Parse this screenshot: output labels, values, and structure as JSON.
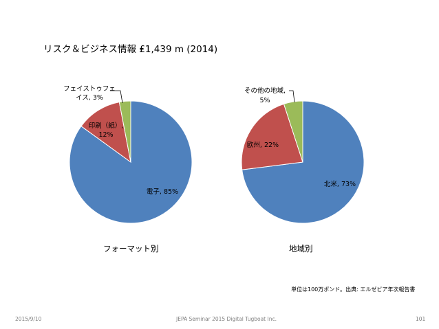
{
  "slide": {
    "title": "リスク＆ビジネス情報 ₤1,439 m (2014)",
    "note": "単位は100万ポンド。出典: エルゼビア年次報告書",
    "footer_date": "2015/9/10",
    "footer_center": "JEPA Seminar 2015 Digital Tugboat Inc.",
    "footer_page": "101"
  },
  "colors": {
    "blue": "#4f81bd",
    "red": "#c0504d",
    "green": "#9bbb59"
  },
  "chart_data": [
    {
      "type": "pie",
      "caption": "フォーマット別",
      "slices": [
        {
          "label": "電子",
          "value": 85,
          "display": "電子, 85%",
          "color": "#4f81bd"
        },
        {
          "label": "印刷（紙）",
          "value": 12,
          "display": [
            "印刷（紙）,",
            "12%"
          ],
          "color": "#c0504d"
        },
        {
          "label": "フェイストゥフェイス",
          "value": 3,
          "display": [
            "フェイストゥフェ",
            "イス, 3%"
          ],
          "color": "#9bbb59"
        }
      ]
    },
    {
      "type": "pie",
      "caption": "地域別",
      "slices": [
        {
          "label": "北米",
          "value": 73,
          "display": "北米, 73%",
          "color": "#4f81bd"
        },
        {
          "label": "欧州",
          "value": 22,
          "display": "欧州, 22%",
          "color": "#c0504d"
        },
        {
          "label": "その他の地域",
          "value": 5,
          "display": [
            "その他の地域,",
            "5%"
          ],
          "color": "#9bbb59"
        }
      ]
    }
  ]
}
